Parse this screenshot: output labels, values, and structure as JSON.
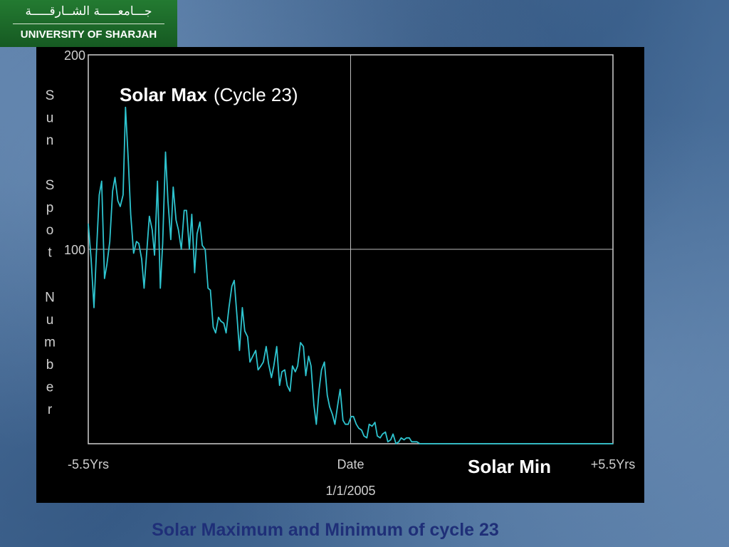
{
  "logo": {
    "arabic_text": "جـــامعـــــة الشــارقـــــة",
    "english_text": "UNIVERSITY OF SHARJAH"
  },
  "caption": "Solar Maximum  and Minimum  of cycle 23",
  "chart_data": {
    "type": "line",
    "ylabel_letters": [
      "S",
      "u",
      "n",
      "",
      "S",
      "p",
      "o",
      "t",
      "",
      "N",
      "u",
      "m",
      "b",
      "e",
      "r"
    ],
    "ylim": [
      0,
      200
    ],
    "yticks": [
      {
        "value": 200,
        "label": "200"
      },
      {
        "value": 100,
        "label": "100"
      }
    ],
    "xlim": [
      -5.5,
      5.5
    ],
    "xticks": [
      {
        "value": -5.5,
        "label": "-5.5Yrs"
      },
      {
        "value": 0,
        "label": "Date"
      },
      {
        "value": 5.5,
        "label": "+5.5Yrs"
      }
    ],
    "x_center_date": "1/1/2005",
    "annotations": {
      "solar_max_bold": "Solar Max",
      "solar_max_plain": "(Cycle 23)",
      "solar_min": "Solar Min"
    },
    "grid": "center crosshair at Date and 100",
    "line_color": "#2ec4cf",
    "series": [
      {
        "x": [
          -5.5,
          -5.44,
          -5.38,
          -5.33,
          -5.27,
          -5.22,
          -5.16,
          -5.11,
          -5.05,
          -4.99,
          -4.94,
          -4.88,
          -4.83,
          -4.77,
          -4.72,
          -4.66,
          -4.61,
          -4.55,
          -4.49,
          -4.44,
          -4.38,
          -4.33,
          -4.27,
          -4.22,
          -4.16,
          -4.11,
          -4.05,
          -3.99,
          -3.94,
          -3.88,
          -3.83,
          -3.77,
          -3.72,
          -3.66,
          -3.61,
          -3.55,
          -3.49,
          -3.44,
          -3.38,
          -3.33,
          -3.27,
          -3.22,
          -3.16,
          -3.11,
          -3.05,
          -2.99,
          -2.94,
          -2.88,
          -2.83,
          -2.77,
          -2.72,
          -2.66,
          -2.61,
          -2.55,
          -2.49,
          -2.44,
          -2.38,
          -2.33,
          -2.27,
          -2.22,
          -2.16,
          -2.11,
          -2.05,
          -1.99,
          -1.94,
          -1.88,
          -1.83,
          -1.77,
          -1.72,
          -1.66,
          -1.61,
          -1.55,
          -1.49,
          -1.44,
          -1.38,
          -1.33,
          -1.27,
          -1.22,
          -1.16,
          -1.11,
          -1.05,
          -0.99,
          -0.94,
          -0.88,
          -0.83,
          -0.77,
          -0.72,
          -0.66,
          -0.61,
          -0.55,
          -0.49,
          -0.44,
          -0.38,
          -0.33,
          -0.27,
          -0.22,
          -0.16,
          -0.11,
          -0.05,
          0.01,
          0.06,
          0.12,
          0.17,
          0.23,
          0.28,
          0.34,
          0.39,
          0.45,
          0.51,
          0.56,
          0.62,
          0.67,
          0.73,
          0.78,
          0.84,
          0.89,
          0.95,
          1.01,
          1.06,
          1.12,
          1.17,
          1.23,
          1.28,
          1.34,
          1.39,
          1.45,
          1.51,
          1.56,
          1.62,
          1.67,
          1.73,
          1.78,
          1.84,
          1.89,
          1.95,
          2.01,
          2.06,
          2.12,
          2.17,
          2.23,
          2.28,
          2.34,
          2.39,
          2.45,
          2.51,
          2.56,
          2.62,
          2.67,
          2.73,
          2.78,
          2.84,
          2.89,
          2.95,
          3.01,
          3.06,
          3.12,
          3.17,
          3.23,
          3.28,
          3.34,
          3.39,
          3.45,
          3.51,
          3.56,
          3.62,
          3.67,
          3.73,
          3.78,
          3.84,
          3.89,
          3.95,
          4.01,
          4.06,
          4.12,
          4.17,
          4.23,
          4.28,
          4.34,
          4.39,
          4.45,
          4.51,
          4.56,
          4.62,
          4.67,
          4.73,
          4.78,
          4.84,
          4.89,
          4.95,
          5.01,
          5.06,
          5.12,
          5.17,
          5.23,
          5.28,
          5.34,
          5.39,
          5.45,
          5.5
        ],
        "y": [
          113,
          95,
          70,
          98,
          128,
          135,
          85,
          92,
          104,
          130,
          137,
          125,
          122,
          128,
          173,
          145,
          118,
          98,
          104,
          103,
          95,
          80,
          100,
          117,
          110,
          97,
          135,
          80,
          103,
          150,
          125,
          105,
          132,
          115,
          110,
          100,
          120,
          120,
          100,
          118,
          88,
          108,
          114,
          102,
          100,
          80,
          79,
          60,
          57,
          65,
          63,
          62,
          57,
          70,
          81,
          84,
          65,
          48,
          70,
          58,
          55,
          42,
          45,
          48,
          38,
          40,
          42,
          50,
          41,
          34,
          40,
          50,
          30,
          37,
          38,
          30,
          27,
          40,
          37,
          40,
          52,
          50,
          35,
          45,
          40,
          20,
          10,
          28,
          38,
          42,
          25,
          19,
          15,
          10,
          20,
          28,
          12,
          10,
          10,
          14,
          14,
          10,
          8,
          7,
          4,
          3,
          10,
          9,
          11,
          4,
          3,
          5,
          6,
          1,
          2,
          5,
          0,
          1,
          3,
          2,
          3,
          3,
          1,
          1,
          1,
          0,
          0,
          0,
          0,
          0,
          0,
          0,
          0,
          0,
          0,
          0,
          0,
          0,
          0,
          0,
          0,
          0,
          0,
          0,
          0,
          0,
          0,
          0,
          0,
          0,
          0,
          0,
          0,
          0,
          0,
          0,
          0,
          0,
          0,
          0,
          0,
          0,
          0,
          0,
          0,
          0,
          0,
          0,
          0,
          0,
          0,
          0,
          0,
          0,
          0,
          0,
          0,
          0,
          0,
          0,
          0,
          0,
          0,
          0,
          0,
          0,
          0,
          0,
          0,
          0,
          0,
          0,
          0,
          0,
          0,
          0,
          0,
          0,
          0
        ]
      }
    ]
  }
}
